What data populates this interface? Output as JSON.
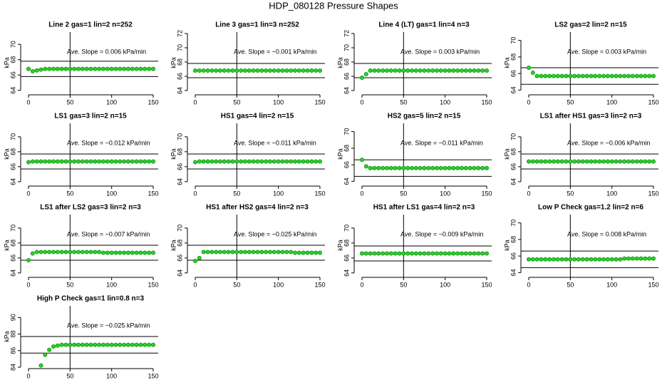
{
  "title": "HDP_080128  Pressure Shapes",
  "chart_data": [
    {
      "type": "scatter",
      "title": "Line 2 gas=1 lin=2 n=252",
      "ylabel": "kPa",
      "annotation": "Ave. Slope =  0.006  kPa/min",
      "color": "#33cc33",
      "edgecolor": "#009900",
      "x": [
        0,
        5,
        10,
        15,
        20,
        25,
        30,
        35,
        40,
        45,
        50,
        55,
        60,
        65,
        70,
        75,
        80,
        85,
        90,
        95,
        100,
        105,
        110,
        115,
        120,
        125,
        130,
        135,
        140,
        145,
        150
      ],
      "values": [
        66.8,
        66.5,
        66.6,
        66.7,
        66.8,
        66.8,
        66.8,
        66.8,
        66.8,
        66.8,
        66.8,
        66.8,
        66.8,
        66.8,
        66.8,
        66.8,
        66.8,
        66.8,
        66.8,
        66.8,
        66.8,
        66.8,
        66.8,
        66.8,
        66.8,
        66.8,
        66.8,
        66.8,
        66.8,
        66.8,
        66.8
      ],
      "xlim": [
        -6,
        156
      ],
      "xticks": [
        0,
        50,
        100,
        150
      ],
      "ylim": [
        63.6,
        71.6
      ],
      "yticks": [
        64,
        66,
        68,
        70
      ],
      "hlines": [
        67.8,
        65.8
      ],
      "vline": 50
    },
    {
      "type": "scatter",
      "title": "Line 3 gas=1 lin=3 n=252",
      "ylabel": "kPa",
      "annotation": "Ave. Slope =  −0.001  kPa/min",
      "color": "#33cc33",
      "edgecolor": "#009900",
      "x": [
        0,
        5,
        10,
        15,
        20,
        25,
        30,
        35,
        40,
        45,
        50,
        55,
        60,
        65,
        70,
        75,
        80,
        85,
        90,
        95,
        100,
        105,
        110,
        115,
        120,
        125,
        130,
        135,
        140,
        145,
        150
      ],
      "values": [
        66.8,
        66.8,
        66.8,
        66.8,
        66.8,
        66.8,
        66.8,
        66.8,
        66.8,
        66.8,
        66.8,
        66.8,
        66.8,
        66.8,
        66.8,
        66.8,
        66.8,
        66.8,
        66.8,
        66.8,
        66.8,
        66.8,
        66.8,
        66.8,
        66.8,
        66.8,
        66.8,
        66.8,
        66.8,
        66.8,
        66.8
      ],
      "xlim": [
        -6,
        156
      ],
      "xticks": [
        0,
        50,
        100,
        150
      ],
      "ylim": [
        63.6,
        72.2
      ],
      "yticks": [
        64,
        66,
        68,
        70,
        72
      ],
      "hlines": [
        67.8,
        65.8
      ],
      "vline": 50
    },
    {
      "type": "scatter",
      "title": "Line 4 (LT) gas=1 lin=4 n=3",
      "ylabel": "kPa",
      "annotation": "Ave. Slope =  0.003  kPa/min",
      "color": "#33cc33",
      "edgecolor": "#009900",
      "x": [
        0,
        5,
        10,
        15,
        20,
        25,
        30,
        35,
        40,
        45,
        50,
        55,
        60,
        65,
        70,
        75,
        80,
        85,
        90,
        95,
        100,
        105,
        110,
        115,
        120,
        125,
        130,
        135,
        140,
        145,
        150
      ],
      "values": [
        65.8,
        66.3,
        66.8,
        66.8,
        66.8,
        66.8,
        66.8,
        66.8,
        66.8,
        66.8,
        66.8,
        66.8,
        66.8,
        66.8,
        66.8,
        66.8,
        66.8,
        66.8,
        66.8,
        66.8,
        66.8,
        66.8,
        66.8,
        66.8,
        66.8,
        66.8,
        66.8,
        66.8,
        66.8,
        66.8,
        66.8
      ],
      "xlim": [
        -6,
        156
      ],
      "xticks": [
        0,
        50,
        100,
        150
      ],
      "ylim": [
        63.6,
        72.2
      ],
      "yticks": [
        64,
        66,
        68,
        70,
        72
      ],
      "hlines": [
        67.8,
        65.8
      ],
      "vline": 50
    },
    {
      "type": "scatter",
      "title": "LS2 gas=2 lin=2 n=15",
      "ylabel": "kPa",
      "annotation": "Ave. Slope =  0.003  kPa/min",
      "color": "#33cc33",
      "edgecolor": "#009900",
      "x": [
        0,
        5,
        10,
        15,
        20,
        25,
        30,
        35,
        40,
        45,
        50,
        55,
        60,
        65,
        70,
        75,
        80,
        85,
        90,
        95,
        100,
        105,
        110,
        115,
        120,
        125,
        130,
        135,
        140,
        145,
        150
      ],
      "values": [
        66.7,
        66.1,
        65.7,
        65.7,
        65.7,
        65.7,
        65.7,
        65.7,
        65.7,
        65.7,
        65.7,
        65.7,
        65.7,
        65.7,
        65.7,
        65.7,
        65.7,
        65.7,
        65.7,
        65.7,
        65.7,
        65.7,
        65.7,
        65.7,
        65.7,
        65.7,
        65.7,
        65.7,
        65.7,
        65.7,
        65.7
      ],
      "xlim": [
        -6,
        156
      ],
      "xticks": [
        0,
        50,
        100,
        150
      ],
      "ylim": [
        63.6,
        71.0
      ],
      "yticks": [
        64,
        66,
        68,
        70
      ],
      "hlines": [
        66.7,
        64.7
      ],
      "vline": 50
    },
    {
      "type": "scatter",
      "title": "LS1 gas=3 lin=2 n=15",
      "ylabel": "kPa",
      "annotation": "Ave. Slope =  −0.012  kPa/min",
      "color": "#33cc33",
      "edgecolor": "#009900",
      "x": [
        0,
        5,
        10,
        15,
        20,
        25,
        30,
        35,
        40,
        45,
        50,
        55,
        60,
        65,
        70,
        75,
        80,
        85,
        90,
        95,
        100,
        105,
        110,
        115,
        120,
        125,
        130,
        135,
        140,
        145,
        150
      ],
      "values": [
        66.6,
        66.7,
        66.7,
        66.7,
        66.7,
        66.7,
        66.7,
        66.7,
        66.7,
        66.7,
        66.7,
        66.7,
        66.7,
        66.7,
        66.7,
        66.7,
        66.7,
        66.7,
        66.7,
        66.7,
        66.7,
        66.7,
        66.7,
        66.7,
        66.7,
        66.7,
        66.7,
        66.7,
        66.7,
        66.7,
        66.7
      ],
      "xlim": [
        -6,
        156
      ],
      "xticks": [
        0,
        50,
        100,
        150
      ],
      "ylim": [
        63.6,
        71.8
      ],
      "yticks": [
        64,
        66,
        68,
        70
      ],
      "hlines": [
        67.7,
        65.7
      ],
      "vline": 50
    },
    {
      "type": "scatter",
      "title": "HS1 gas=4 lin=2 n=15",
      "ylabel": "kPa",
      "annotation": "Ave. Slope =  −0.011  kPa/min",
      "color": "#33cc33",
      "edgecolor": "#009900",
      "x": [
        0,
        5,
        10,
        15,
        20,
        25,
        30,
        35,
        40,
        45,
        50,
        55,
        60,
        65,
        70,
        75,
        80,
        85,
        90,
        95,
        100,
        105,
        110,
        115,
        120,
        125,
        130,
        135,
        140,
        145,
        150
      ],
      "values": [
        66.6,
        66.7,
        66.7,
        66.7,
        66.7,
        66.7,
        66.7,
        66.7,
        66.7,
        66.7,
        66.7,
        66.7,
        66.7,
        66.7,
        66.7,
        66.7,
        66.7,
        66.7,
        66.7,
        66.7,
        66.7,
        66.7,
        66.7,
        66.7,
        66.7,
        66.7,
        66.7,
        66.7,
        66.7,
        66.7,
        66.7
      ],
      "xlim": [
        -6,
        156
      ],
      "xticks": [
        0,
        50,
        100,
        150
      ],
      "ylim": [
        63.6,
        71.8
      ],
      "yticks": [
        64,
        66,
        68,
        70
      ],
      "hlines": [
        67.7,
        65.7
      ],
      "vline": 50
    },
    {
      "type": "scatter",
      "title": "HS2 gas=5 lin=2 n=15",
      "ylabel": "kPa",
      "annotation": "Ave. Slope =  −0.011  kPa/min",
      "color": "#33cc33",
      "edgecolor": "#009900",
      "x": [
        0,
        5,
        10,
        15,
        20,
        25,
        30,
        35,
        40,
        45,
        50,
        55,
        60,
        65,
        70,
        75,
        80,
        85,
        90,
        95,
        100,
        105,
        110,
        115,
        120,
        125,
        130,
        135,
        140,
        145,
        150
      ],
      "values": [
        66.6,
        65.8,
        65.6,
        65.6,
        65.6,
        65.6,
        65.6,
        65.6,
        65.6,
        65.6,
        65.6,
        65.6,
        65.6,
        65.6,
        65.6,
        65.6,
        65.6,
        65.6,
        65.6,
        65.6,
        65.6,
        65.6,
        65.6,
        65.6,
        65.6,
        65.6,
        65.6,
        65.6,
        65.6,
        65.6,
        65.6
      ],
      "xlim": [
        -6,
        156
      ],
      "xticks": [
        0,
        50,
        100,
        150
      ],
      "ylim": [
        63.6,
        71.0
      ],
      "yticks": [
        64,
        66,
        68,
        70
      ],
      "hlines": [
        66.6,
        64.6
      ],
      "vline": 50
    },
    {
      "type": "scatter",
      "title": "LS1 after HS1 gas=3 lin=2 n=3",
      "ylabel": "kPa",
      "annotation": "Ave. Slope =  −0.006  kPa/min",
      "color": "#33cc33",
      "edgecolor": "#009900",
      "x": [
        0,
        5,
        10,
        15,
        20,
        25,
        30,
        35,
        40,
        45,
        50,
        55,
        60,
        65,
        70,
        75,
        80,
        85,
        90,
        95,
        100,
        105,
        110,
        115,
        120,
        125,
        130,
        135,
        140,
        145,
        150
      ],
      "values": [
        66.7,
        66.7,
        66.7,
        66.7,
        66.7,
        66.7,
        66.7,
        66.7,
        66.7,
        66.7,
        66.7,
        66.7,
        66.7,
        66.7,
        66.7,
        66.7,
        66.7,
        66.7,
        66.7,
        66.7,
        66.7,
        66.7,
        66.7,
        66.7,
        66.7,
        66.7,
        66.7,
        66.7,
        66.7,
        66.7,
        66.7
      ],
      "xlim": [
        -6,
        156
      ],
      "xticks": [
        0,
        50,
        100,
        150
      ],
      "ylim": [
        63.6,
        71.8
      ],
      "yticks": [
        64,
        66,
        68,
        70
      ],
      "hlines": [
        67.7,
        65.7
      ],
      "vline": 50
    },
    {
      "type": "scatter",
      "title": "LS1 after LS2 gas=3 lin=2 n=3",
      "ylabel": "kPa",
      "annotation": "Ave. Slope =  −0.007  kPa/min",
      "color": "#33cc33",
      "edgecolor": "#009900",
      "x": [
        0,
        5,
        10,
        15,
        20,
        25,
        30,
        35,
        40,
        45,
        50,
        55,
        60,
        65,
        70,
        75,
        80,
        85,
        90,
        95,
        100,
        105,
        110,
        115,
        120,
        125,
        130,
        135,
        140,
        145,
        150
      ],
      "values": [
        65.7,
        66.6,
        66.8,
        66.8,
        66.8,
        66.8,
        66.8,
        66.8,
        66.8,
        66.8,
        66.8,
        66.8,
        66.8,
        66.8,
        66.8,
        66.8,
        66.8,
        66.8,
        66.7,
        66.7,
        66.7,
        66.7,
        66.7,
        66.7,
        66.7,
        66.7,
        66.7,
        66.7,
        66.7,
        66.7,
        66.7
      ],
      "xlim": [
        -6,
        156
      ],
      "xticks": [
        0,
        50,
        100,
        150
      ],
      "ylim": [
        63.6,
        71.8
      ],
      "yticks": [
        64,
        66,
        68,
        70
      ],
      "hlines": [
        67.7,
        65.7
      ],
      "vline": 50
    },
    {
      "type": "scatter",
      "title": "HS1 after HS2 gas=4 lin=2 n=3",
      "ylabel": "kPa",
      "annotation": "Ave. Slope =  −0.025  kPa/min",
      "color": "#33cc33",
      "edgecolor": "#009900",
      "x": [
        0,
        5,
        10,
        15,
        20,
        25,
        30,
        35,
        40,
        45,
        50,
        55,
        60,
        65,
        70,
        75,
        80,
        85,
        90,
        95,
        100,
        105,
        110,
        115,
        120,
        125,
        130,
        135,
        140,
        145,
        150
      ],
      "values": [
        65.6,
        66.0,
        66.8,
        66.8,
        66.8,
        66.8,
        66.8,
        66.8,
        66.8,
        66.8,
        66.8,
        66.8,
        66.8,
        66.8,
        66.8,
        66.8,
        66.8,
        66.8,
        66.8,
        66.8,
        66.8,
        66.8,
        66.8,
        66.8,
        66.7,
        66.7,
        66.7,
        66.7,
        66.7,
        66.7,
        66.7
      ],
      "xlim": [
        -6,
        156
      ],
      "xticks": [
        0,
        50,
        100,
        150
      ],
      "ylim": [
        63.6,
        71.8
      ],
      "yticks": [
        64,
        66,
        68,
        70
      ],
      "hlines": [
        67.7,
        65.7
      ],
      "vline": 50
    },
    {
      "type": "scatter",
      "title": "HS1 after LS1 gas=4 lin=2 n=3",
      "ylabel": "kPa",
      "annotation": "Ave. Slope =  −0.009  kPa/min",
      "color": "#33cc33",
      "edgecolor": "#009900",
      "x": [
        0,
        5,
        10,
        15,
        20,
        25,
        30,
        35,
        40,
        45,
        50,
        55,
        60,
        65,
        70,
        75,
        80,
        85,
        90,
        95,
        100,
        105,
        110,
        115,
        120,
        125,
        130,
        135,
        140,
        145,
        150
      ],
      "values": [
        66.6,
        66.6,
        66.6,
        66.6,
        66.6,
        66.6,
        66.6,
        66.6,
        66.6,
        66.6,
        66.6,
        66.6,
        66.6,
        66.6,
        66.6,
        66.6,
        66.6,
        66.6,
        66.6,
        66.6,
        66.6,
        66.6,
        66.6,
        66.6,
        66.6,
        66.6,
        66.6,
        66.6,
        66.6,
        66.6,
        66.6
      ],
      "xlim": [
        -6,
        156
      ],
      "xticks": [
        0,
        50,
        100,
        150
      ],
      "ylim": [
        63.6,
        71.8
      ],
      "yticks": [
        64,
        66,
        68,
        70
      ],
      "hlines": [
        67.6,
        65.6
      ],
      "vline": 50
    },
    {
      "type": "scatter",
      "title": "Low P Check gas=1.2 lin=2 n=6",
      "ylabel": "kPa",
      "annotation": "Ave. Slope =  0.008  kPa/min",
      "color": "#33cc33",
      "edgecolor": "#009900",
      "x": [
        0,
        5,
        10,
        15,
        20,
        25,
        30,
        35,
        40,
        45,
        50,
        55,
        60,
        65,
        70,
        75,
        80,
        85,
        90,
        95,
        100,
        105,
        110,
        115,
        120,
        125,
        130,
        135,
        140,
        145,
        150
      ],
      "values": [
        65.6,
        65.6,
        65.6,
        65.6,
        65.6,
        65.6,
        65.6,
        65.6,
        65.6,
        65.6,
        65.6,
        65.6,
        65.6,
        65.6,
        65.6,
        65.6,
        65.6,
        65.6,
        65.6,
        65.6,
        65.6,
        65.6,
        65.6,
        65.7,
        65.7,
        65.7,
        65.7,
        65.7,
        65.7,
        65.7,
        65.7
      ],
      "xlim": [
        -6,
        156
      ],
      "xticks": [
        0,
        50,
        100,
        150
      ],
      "ylim": [
        63.6,
        71.0
      ],
      "yticks": [
        64,
        66,
        68,
        70
      ],
      "hlines": [
        66.6,
        64.6
      ],
      "vline": 50
    },
    {
      "type": "scatter",
      "title": "High P Check gas=1 lin=0.8 n=3",
      "ylabel": "kPa",
      "annotation": "Ave. Slope =  −0.025  kPa/min",
      "color": "#33cc33",
      "edgecolor": "#009900",
      "x": [
        15,
        20,
        25,
        30,
        35,
        40,
        45,
        50,
        55,
        60,
        65,
        70,
        75,
        80,
        85,
        90,
        95,
        100,
        105,
        110,
        115,
        120,
        125,
        130,
        135,
        140,
        145,
        150
      ],
      "values": [
        84.2,
        85.5,
        86.1,
        86.5,
        86.6,
        86.7,
        86.7,
        86.7,
        86.7,
        86.7,
        86.7,
        86.7,
        86.7,
        86.7,
        86.7,
        86.7,
        86.7,
        86.7,
        86.7,
        86.7,
        86.7,
        86.7,
        86.7,
        86.7,
        86.7,
        86.7,
        86.7,
        86.7
      ],
      "xlim": [
        -6,
        156
      ],
      "xticks": [
        0,
        50,
        100,
        150
      ],
      "ylim": [
        84,
        91.4
      ],
      "yticks": [
        84,
        86,
        88,
        90
      ],
      "hlines": [
        87.7,
        85.7
      ],
      "vline": 50
    }
  ]
}
